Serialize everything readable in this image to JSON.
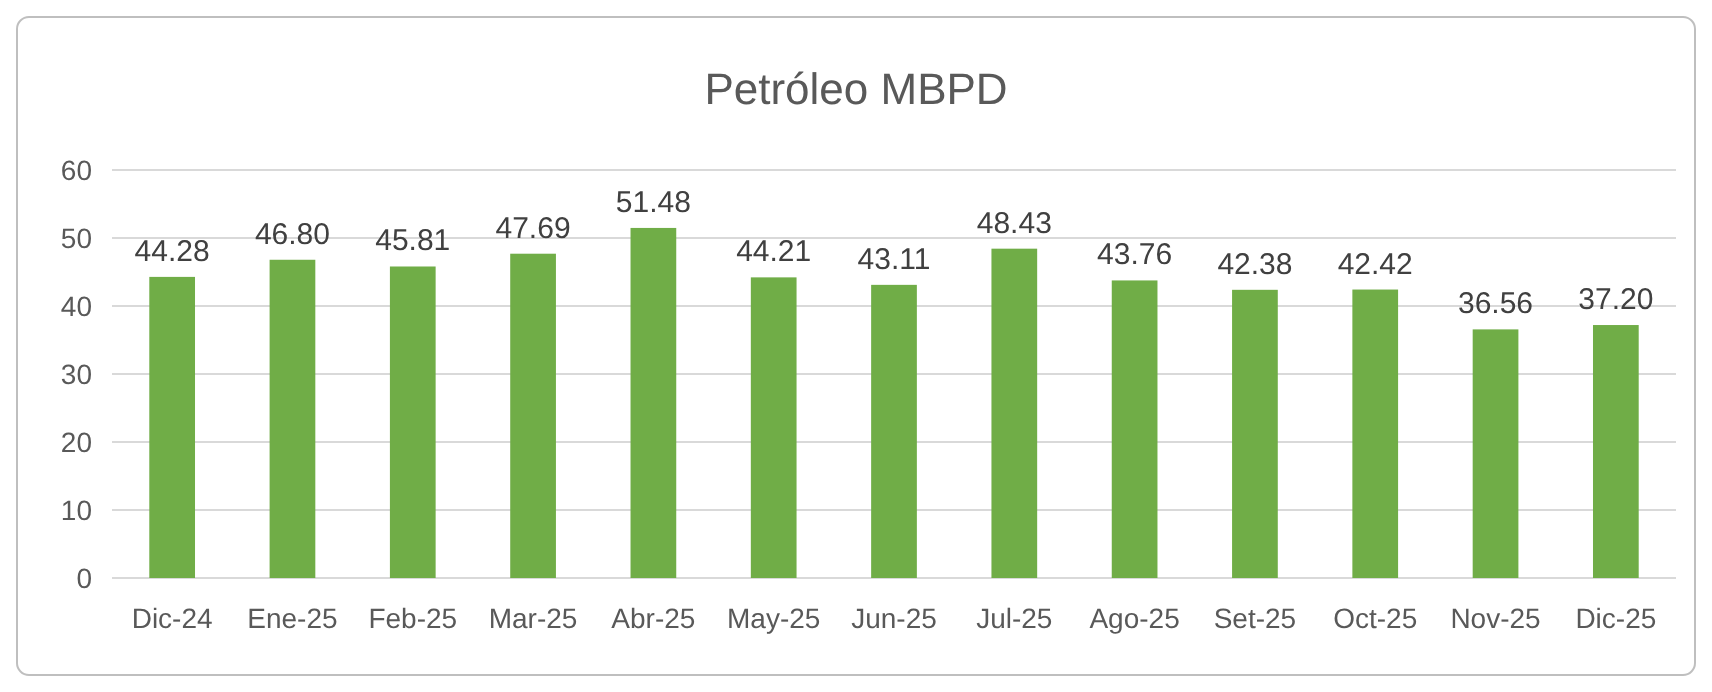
{
  "chart_data": {
    "type": "bar",
    "title": "Petróleo MBPD",
    "categories": [
      "Dic-24",
      "Ene-25",
      "Feb-25",
      "Mar-25",
      "Abr-25",
      "May-25",
      "Jun-25",
      "Jul-25",
      "Ago-25",
      "Set-25",
      "Oct-25",
      "Nov-25",
      "Dic-25"
    ],
    "values": [
      44.28,
      46.8,
      45.81,
      47.69,
      51.48,
      44.21,
      43.11,
      48.43,
      43.76,
      42.38,
      42.42,
      36.56,
      37.2
    ],
    "value_labels": [
      "44.28",
      "46.80",
      "45.81",
      "47.69",
      "51.48",
      "44.21",
      "43.11",
      "48.43",
      "43.76",
      "42.38",
      "42.42",
      "36.56",
      "37.20"
    ],
    "color": "#70ad47",
    "ylim": [
      0,
      60
    ],
    "yticks": [
      0,
      10,
      20,
      30,
      40,
      50,
      60
    ],
    "grid": "y"
  }
}
